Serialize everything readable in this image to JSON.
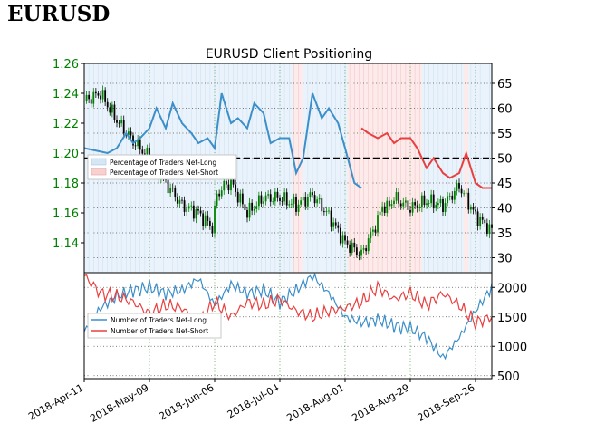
{
  "heading": "EURUSD",
  "chart_data": [
    {
      "type": "line",
      "title": "EURUSD Client Positioning",
      "xlabel": "",
      "ylabel": "",
      "x_categories": [
        "2018-Apr-11",
        "2018-May-09",
        "2018-Jun-06",
        "2018-Jul-04",
        "2018-Aug-01",
        "2018-Aug-29",
        "2018-Sep-26"
      ],
      "left_axis": {
        "ticks": [
          "1.14",
          "1.16",
          "1.18",
          "1.20",
          "1.22",
          "1.24",
          "1.26"
        ],
        "ylim": [
          1.12,
          1.26
        ],
        "color": "#008000"
      },
      "right_axis": {
        "ticks": [
          "30",
          "35",
          "40",
          "45",
          "50",
          "55",
          "60",
          "65"
        ],
        "ylim": [
          27,
          69
        ]
      },
      "reference_line": 50,
      "legend": {
        "position": "upper-left",
        "entries": [
          "Percentage of Traders Net-Long",
          "Percentage of Traders Net-Short"
        ]
      },
      "colors": {
        "net_long": "#3c8fc9",
        "net_short": "#e8403f",
        "price_up": "#008000",
        "price_down": "#000000"
      },
      "grid": true,
      "price_anchors": {
        "days": [
          0,
          7,
          10,
          14,
          21,
          28,
          35,
          42,
          49,
          55,
          57,
          60,
          63,
          70,
          77,
          84,
          91,
          98,
          105,
          112,
          119,
          126,
          128,
          130,
          133,
          140,
          147,
          154,
          161,
          168,
          175
        ],
        "price": [
          1.235,
          1.24,
          1.232,
          1.222,
          1.208,
          1.197,
          1.18,
          1.165,
          1.16,
          1.15,
          1.172,
          1.178,
          1.18,
          1.16,
          1.17,
          1.17,
          1.165,
          1.172,
          1.158,
          1.14,
          1.132,
          1.155,
          1.165,
          1.163,
          1.17,
          1.163,
          1.168,
          1.165,
          1.178,
          1.158,
          1.148
        ]
      },
      "net_long_pct": {
        "days": [
          0,
          10,
          14,
          18,
          21,
          24,
          28,
          31,
          35,
          38,
          42,
          46,
          49,
          53,
          56,
          59,
          63,
          66,
          70,
          73,
          77,
          80,
          84,
          88,
          91,
          94,
          98,
          102,
          105,
          109,
          112,
          116,
          119
        ],
        "values": [
          52,
          51,
          52,
          55,
          53,
          54,
          56,
          60,
          56,
          61,
          57,
          55,
          53,
          54,
          52,
          63,
          57,
          58,
          56,
          61,
          59,
          53,
          54,
          54,
          47,
          50,
          63,
          58,
          60,
          57,
          52,
          45,
          44
        ]
      },
      "net_short_pct": {
        "days": [
          119,
          122,
          126,
          130,
          133,
          136,
          140,
          143,
          147,
          150,
          154,
          157,
          161,
          164,
          168,
          171,
          175
        ],
        "values": [
          56,
          55,
          54,
          55,
          53,
          54,
          54,
          52,
          48,
          50,
          47,
          46,
          47,
          51,
          45,
          44,
          44
        ]
      }
    },
    {
      "type": "line",
      "title": "",
      "y_ticks": [
        "500",
        "1000",
        "1500",
        "2000"
      ],
      "ylim": [
        450,
        2250
      ],
      "legend": {
        "position": "upper-left",
        "entries": [
          "Number of Traders Net-Long",
          "Number of Traders Net-Short"
        ]
      },
      "series": [
        {
          "name": "Number of Traders Net-Long",
          "color": "#3c8fc9",
          "days": [
            0,
            7,
            14,
            21,
            28,
            35,
            42,
            49,
            56,
            63,
            70,
            77,
            84,
            91,
            98,
            105,
            112,
            119,
            126,
            133,
            140,
            147,
            154,
            161,
            168,
            175
          ],
          "values": [
            1250,
            1650,
            1850,
            1950,
            2000,
            1900,
            1950,
            2150,
            1700,
            2050,
            1900,
            1950,
            1750,
            1950,
            2200,
            1900,
            1500,
            1400,
            1450,
            1350,
            1300,
            1150,
            800,
            1150,
            1600,
            2000
          ]
        },
        {
          "name": "Number of Traders Net-Short",
          "color": "#e8403f",
          "days": [
            0,
            7,
            14,
            21,
            28,
            35,
            42,
            49,
            56,
            63,
            70,
            77,
            84,
            91,
            98,
            105,
            112,
            119,
            126,
            133,
            140,
            147,
            154,
            161,
            168,
            175
          ],
          "values": [
            2200,
            1900,
            1850,
            1750,
            1550,
            1700,
            1650,
            1400,
            1750,
            1500,
            1750,
            1700,
            1800,
            1600,
            1500,
            1600,
            1650,
            1750,
            2000,
            1800,
            1900,
            1700,
            1900,
            1700,
            1400,
            1500
          ]
        }
      ]
    }
  ]
}
